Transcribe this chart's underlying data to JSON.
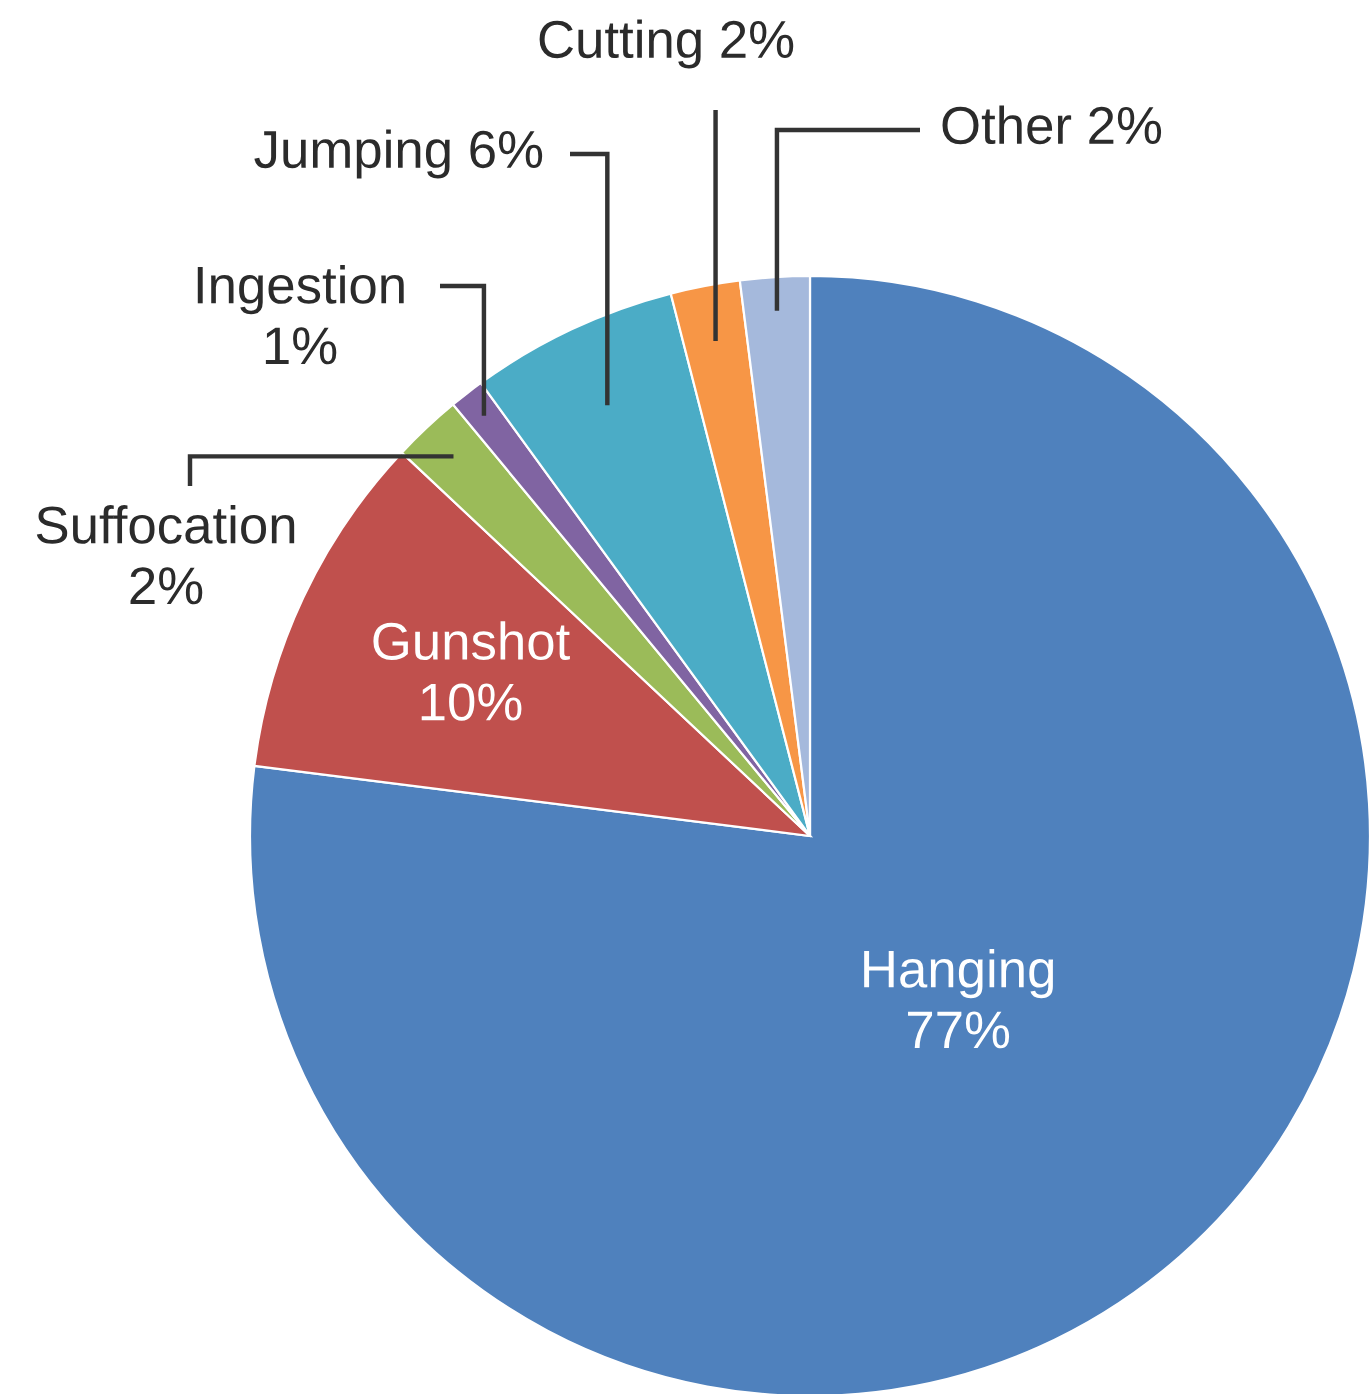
{
  "chart_data": {
    "type": "pie",
    "categories": [
      "Hanging",
      "Gunshot",
      "Suffocation",
      "Ingestion",
      "Jumping",
      "Cutting",
      "Other"
    ],
    "values": [
      77,
      10,
      2,
      1,
      6,
      2,
      2
    ],
    "value_labels": [
      "77%",
      "10%",
      "2%",
      "1%",
      "6%",
      "2%",
      "2%"
    ],
    "colors": [
      "#4f81bd",
      "#c0504d",
      "#9bbb59",
      "#8064a2",
      "#4bacc6",
      "#f79646",
      "#a5b9dc"
    ]
  }
}
